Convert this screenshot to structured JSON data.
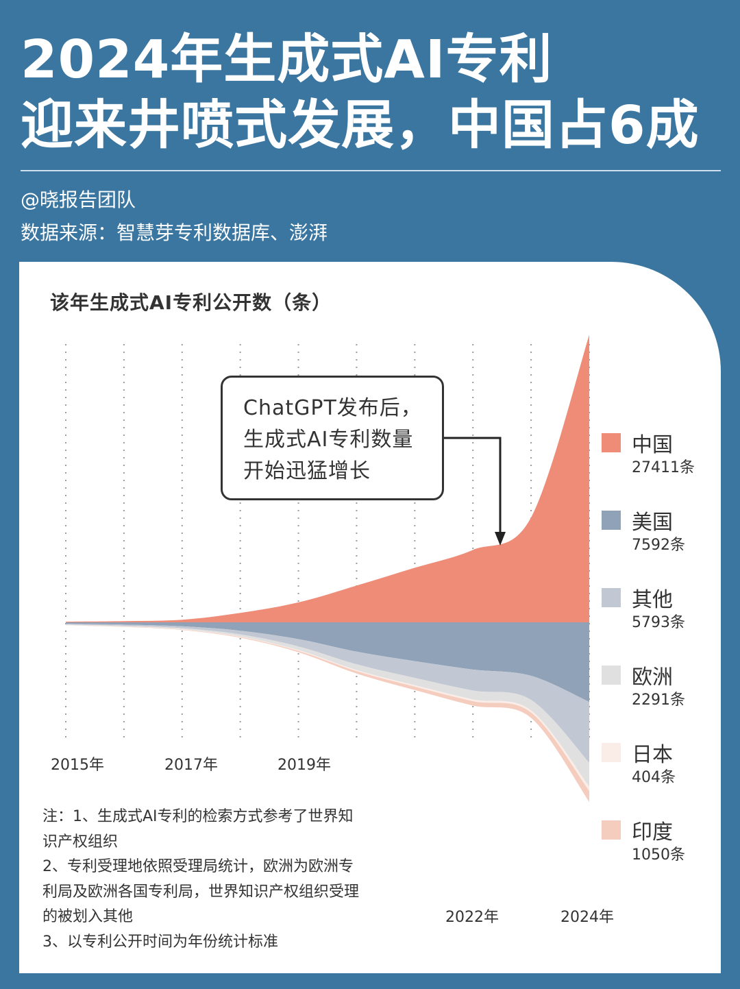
{
  "headline": {
    "line1": "2024年生成式AI专利",
    "line2": "迎来井喷式发展，中国占6成"
  },
  "author": "@晓报告团队",
  "source": "数据来源：智慧芽专利数据库、澎湃",
  "callout": {
    "line1": "ChatGPT发布后，",
    "line2": "生成式AI专利数量",
    "line3": "开始迅猛增长"
  },
  "notes": [
    "注：1、生成式AI专利的检索方式参考了世界知",
    "识产权组织",
    "2、专利受理地依照受理局统计，欧洲为欧洲专",
    "利局及欧洲各国专利局，世界知识产权组织受理",
    "的被划入其他",
    "3、以专利公开时间为年份统计标准"
  ],
  "legend": [
    {
      "name": "中国",
      "count": "27411条",
      "color": "#ee8c78"
    },
    {
      "name": "美国",
      "count": "7592条",
      "color": "#8fa2b8"
    },
    {
      "name": "其他",
      "count": "5793条",
      "color": "#c2c8d3"
    },
    {
      "name": "欧洲",
      "count": "2291条",
      "color": "#e0e0e0"
    },
    {
      "name": "日本",
      "count": "404条",
      "color": "#faece7"
    },
    {
      "name": "印度",
      "count": "1050条",
      "color": "#f4cdbe"
    }
  ],
  "colors": {
    "background": "#3a76a0",
    "card": "#ffffff",
    "text_dark": "#333333"
  },
  "chart_data": {
    "type": "area",
    "title": "该年生成式AI专利公开数（条）",
    "x": [
      2015,
      2016,
      2017,
      2018,
      2019,
      2020,
      2021,
      2022,
      2023,
      2024
    ],
    "x_tick_labels": [
      "2015年",
      "2017年",
      "2019年",
      "2022年",
      "2024年"
    ],
    "legend_position": "right",
    "grid": "vertical dotted lines per year",
    "series": [
      {
        "name": "中国",
        "values": [
          60,
          120,
          250,
          900,
          1900,
          3500,
          5200,
          6900,
          10000,
          27411
        ]
      },
      {
        "name": "美国",
        "values": [
          150,
          220,
          380,
          800,
          1600,
          2800,
          3700,
          4500,
          5100,
          7592
        ]
      },
      {
        "name": "其他",
        "values": [
          70,
          110,
          180,
          350,
          700,
          1200,
          1600,
          2000,
          2300,
          5793
        ]
      },
      {
        "name": "欧洲",
        "values": [
          40,
          60,
          100,
          200,
          350,
          550,
          700,
          850,
          1000,
          2291
        ]
      },
      {
        "name": "日本",
        "values": [
          10,
          20,
          30,
          50,
          80,
          110,
          140,
          170,
          200,
          404
        ]
      },
      {
        "name": "印度",
        "values": [
          15,
          25,
          40,
          70,
          120,
          220,
          320,
          420,
          520,
          1050
        ]
      }
    ]
  }
}
